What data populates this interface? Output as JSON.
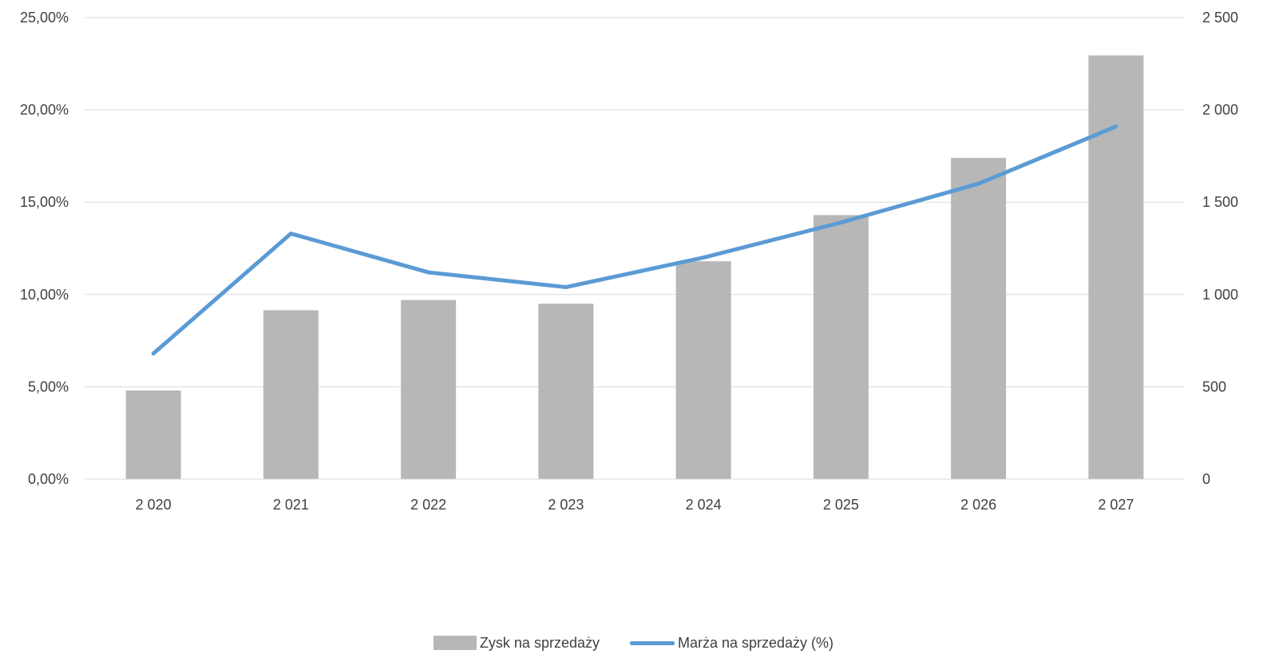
{
  "chart_data": {
    "type": "bar+line",
    "categories": [
      "2 020",
      "2 021",
      "2 022",
      "2 023",
      "2 024",
      "2 025",
      "2 026",
      "2 027"
    ],
    "series": [
      {
        "name": "Zysk na sprzedaży",
        "type": "bar",
        "axis": "right",
        "color": "#b7b7b7",
        "values": [
          480,
          915,
          970,
          950,
          1180,
          1430,
          1740,
          2295
        ]
      },
      {
        "name": "Marża na sprzedaży (%)",
        "type": "line",
        "axis": "left",
        "color": "#5b9bd5",
        "values": [
          6.8,
          13.3,
          11.2,
          10.4,
          12.0,
          13.9,
          16.0,
          19.1
        ]
      }
    ],
    "y_left": {
      "ylim": [
        0,
        25
      ],
      "ticks": [
        "0,00%",
        "5,00%",
        "10,00%",
        "15,00%",
        "20,00%",
        "25,00%"
      ]
    },
    "y_right": {
      "ylim": [
        0,
        2500
      ],
      "ticks": [
        "0",
        "500",
        "1 000",
        "1 500",
        "2 000",
        "2 500"
      ]
    },
    "grid": true,
    "legend_position": "bottom",
    "gridline_color": "#d9d9d9"
  }
}
